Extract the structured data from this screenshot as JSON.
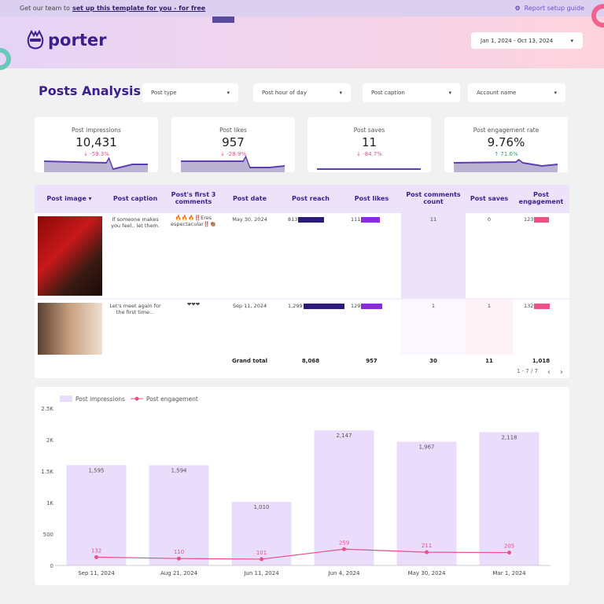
{
  "topbar": {
    "prefix": "Get our team to",
    "link": "set up this template for you - for free",
    "guide": "Report setup guide"
  },
  "brand": {
    "name": "porter"
  },
  "date_range": "Jan 1, 2024 - Oct 13, 2024",
  "page_title": "Posts Analysis",
  "filters": [
    "Post type",
    "Post hour of day",
    "Post caption",
    "Account name"
  ],
  "scorecards": [
    {
      "label": "Post impressions",
      "value": "10,431",
      "change": "-59.3%",
      "direction": "down"
    },
    {
      "label": "Post likes",
      "value": "957",
      "change": "-28.9%",
      "direction": "down"
    },
    {
      "label": "Post saves",
      "value": "11",
      "change": "-84.7%",
      "direction": "down"
    },
    {
      "label": "Post engagement rate",
      "value": "9.76%",
      "change": "71.6%",
      "direction": "up"
    }
  ],
  "table": {
    "headers": [
      "Post image",
      "Post caption",
      "Post's first 3 comments",
      "Post date",
      "Post reach",
      "Post likes",
      "Post comments count",
      "Post saves",
      "Post engagement"
    ],
    "rows": [
      {
        "caption": "If someone makes you feel.. let them.",
        "comments": "🔥🔥🔥‼️Eres espectacular‼️👏🏽",
        "date": "May 30, 2024",
        "reach": "813",
        "reach_v": 813,
        "likes": "111",
        "likes_v": 111,
        "comments_count": "11",
        "saves": "0",
        "engagement": "123",
        "engagement_v": 123
      },
      {
        "caption": "Let's meet again for the first time...",
        "comments": "❤❤❤",
        "date": "Sep 11, 2024",
        "reach": "1,299",
        "reach_v": 1299,
        "likes": "129",
        "likes_v": 129,
        "comments_count": "1",
        "saves": "1",
        "engagement": "132",
        "engagement_v": 132
      }
    ],
    "total_label": "Grand total",
    "totals": {
      "reach": "8,068",
      "likes": "957",
      "comments": "30",
      "saves": "11",
      "engagement": "1,018"
    },
    "pagination": "1 - 7 / 7",
    "colors": {
      "reach": "#2d1a7a",
      "likes": "#8a2be2",
      "engagement": "#f0508a"
    }
  },
  "chart_data": {
    "type": "bar",
    "categories": [
      "Sep 11, 2024",
      "Aug 21, 2024",
      "Jun 11, 2024",
      "Jun 4, 2024",
      "May 30, 2024",
      "Mar 1, 2024"
    ],
    "series": [
      {
        "name": "Post impressions",
        "type": "bar",
        "values": [
          1595,
          1594,
          1010,
          2147,
          1967,
          2118
        ],
        "labels": [
          "1,595",
          "1,594",
          "1,010",
          "2,147",
          "1,967",
          "2,118"
        ],
        "color": "#e9ddfb"
      },
      {
        "name": "Post engagement",
        "type": "line",
        "values": [
          132,
          110,
          101,
          259,
          211,
          205
        ],
        "labels": [
          "132",
          "110",
          "101",
          "259",
          "211",
          "205"
        ],
        "color": "#e8508a"
      }
    ],
    "yticks": [
      "0",
      "500",
      "1K",
      "1.5K",
      "2K",
      "2.5K"
    ],
    "ylim": [
      0,
      2500
    ],
    "legend": "top-left"
  }
}
